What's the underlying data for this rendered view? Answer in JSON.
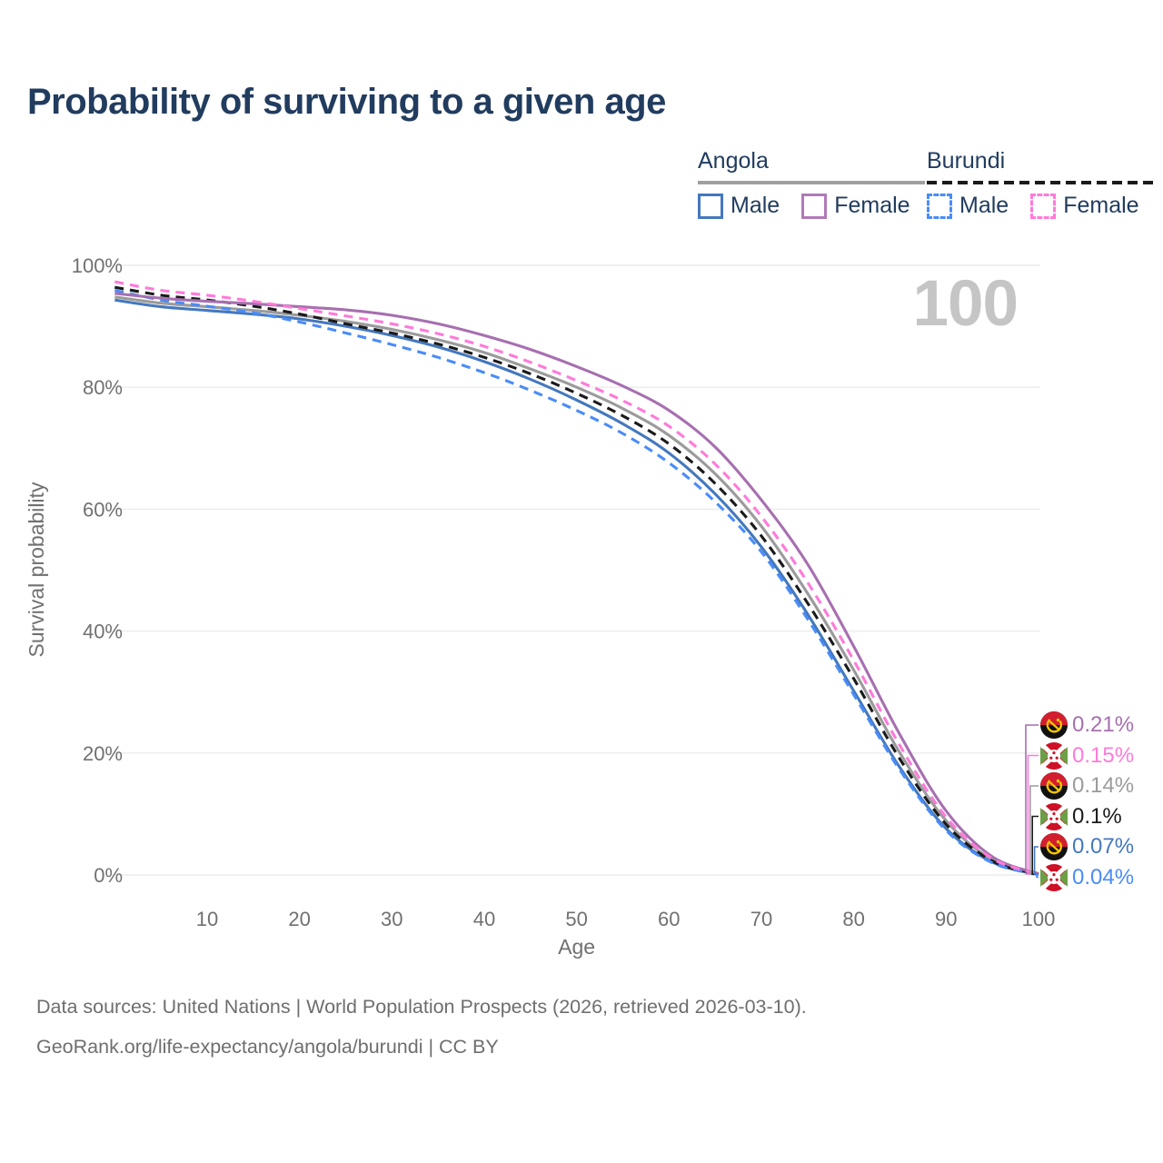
{
  "page": {
    "title": "Probability of surviving to a given age",
    "watermark_age": "100"
  },
  "legend": {
    "groups": [
      {
        "country": "Angola",
        "line_style": "solid",
        "underline_color": "#a0a0a0",
        "items": [
          {
            "label": "Male",
            "color": "#4478be"
          },
          {
            "label": "Female",
            "color": "#b07ab8"
          }
        ]
      },
      {
        "country": "Burundi",
        "line_style": "dashed",
        "underline_color": "#1a1a1a",
        "items": [
          {
            "label": "Male",
            "color": "#4a8cf7"
          },
          {
            "label": "Female",
            "color": "#ff7ad9"
          }
        ]
      }
    ]
  },
  "chart_data": {
    "type": "line",
    "title": "Probability of surviving to a given age",
    "xlabel": "Age",
    "ylabel": "Survival probability",
    "xlim": [
      0,
      100
    ],
    "ylim": [
      0,
      100
    ],
    "grid": "horizontal",
    "legend_position": "top-right",
    "x_ticks": [
      10,
      20,
      30,
      40,
      50,
      60,
      70,
      80,
      90,
      100
    ],
    "y_ticks": [
      0,
      20,
      40,
      60,
      80,
      100
    ],
    "y_tick_labels": [
      "0%",
      "20%",
      "40%",
      "60%",
      "80%",
      "100%"
    ],
    "x": [
      0,
      5,
      10,
      15,
      20,
      25,
      30,
      35,
      40,
      45,
      50,
      55,
      60,
      65,
      70,
      75,
      80,
      85,
      90,
      95,
      100
    ],
    "series": [
      {
        "name": "Angola",
        "country": "Angola",
        "sex": "all",
        "color": "#9b9b9b",
        "dash": false,
        "values": [
          94.8,
          93.8,
          93.2,
          92.6,
          91.8,
          90.8,
          89.5,
          87.8,
          85.7,
          83.0,
          80.0,
          76.5,
          72.1,
          65.8,
          57.2,
          46.2,
          33.6,
          20.0,
          8.9,
          2.5,
          0.14
        ]
      },
      {
        "name": "Angola Male",
        "country": "Angola",
        "sex": "male",
        "color": "#4478be",
        "dash": false,
        "values": [
          94.3,
          93.2,
          92.6,
          92.0,
          91.2,
          90.0,
          88.5,
          86.6,
          84.2,
          81.3,
          77.9,
          74.0,
          69.2,
          62.5,
          53.8,
          42.8,
          30.2,
          17.6,
          7.6,
          2.1,
          0.07
        ]
      },
      {
        "name": "Burundi",
        "country": "Burundi",
        "sex": "all",
        "color": "#1a1a1a",
        "dash": true,
        "values": [
          96.4,
          95.1,
          94.3,
          93.3,
          92.0,
          90.4,
          88.9,
          87.1,
          84.9,
          82.2,
          79.0,
          75.3,
          70.7,
          64.2,
          55.6,
          44.6,
          32.2,
          19.0,
          8.3,
          2.3,
          0.1
        ]
      },
      {
        "name": "Burundi Male",
        "country": "Burundi",
        "sex": "male",
        "color": "#4a8cf7",
        "dash": true,
        "values": [
          95.9,
          94.3,
          93.3,
          92.2,
          90.7,
          88.9,
          87.0,
          84.9,
          82.4,
          79.5,
          76.2,
          72.4,
          67.6,
          61.2,
          53.0,
          42.0,
          29.6,
          17.2,
          7.3,
          2.0,
          0.04
        ]
      },
      {
        "name": "Angola Female",
        "country": "Angola",
        "sex": "female",
        "color": "#a76fb0",
        "dash": false,
        "values": [
          95.4,
          94.6,
          94.1,
          93.7,
          93.2,
          92.7,
          91.8,
          90.4,
          88.5,
          86.2,
          83.4,
          80.2,
          76.2,
          70.2,
          61.5,
          51.0,
          37.5,
          23.0,
          10.5,
          3.0,
          0.21
        ]
      },
      {
        "name": "Burundi Female",
        "country": "Burundi",
        "sex": "female",
        "color": "#ff7ad9",
        "dash": true,
        "values": [
          97.3,
          95.9,
          95.1,
          94.1,
          92.9,
          91.7,
          90.4,
          88.8,
          86.7,
          84.1,
          81.1,
          77.8,
          73.6,
          67.4,
          58.8,
          48.0,
          35.2,
          21.2,
          9.5,
          2.7,
          0.15
        ]
      }
    ],
    "end_labels": [
      {
        "label": "0.21%",
        "series": "Angola Female",
        "flag": "angola",
        "color": "#a76fb0"
      },
      {
        "label": "0.15%",
        "series": "Burundi Female",
        "flag": "burundi",
        "color": "#ff7ad9"
      },
      {
        "label": "0.14%",
        "series": "Angola",
        "flag": "angola",
        "color": "#9b9b9b"
      },
      {
        "label": "0.1%",
        "series": "Burundi",
        "flag": "burundi",
        "color": "#1a1a1a"
      },
      {
        "label": "0.07%",
        "series": "Angola Male",
        "flag": "angola",
        "color": "#4478be"
      },
      {
        "label": "0.04%",
        "series": "Burundi Male",
        "flag": "burundi",
        "color": "#4a8cf7"
      }
    ]
  },
  "sources": {
    "line1": "Data sources: United Nations | World Population Prospects (2026, retrieved 2026-03-10).",
    "line2": "GeoRank.org/life-expectancy/angola/burundi | CC BY"
  }
}
